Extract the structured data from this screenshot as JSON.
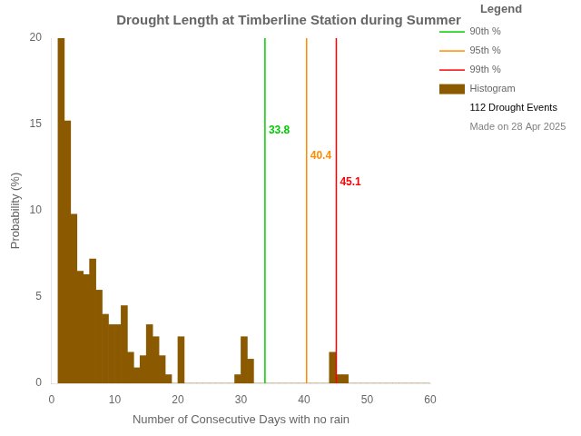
{
  "chart_data": {
    "type": "histogram",
    "title": "Drought Length at Timberline Station during Summer",
    "x_label": "Number of Consecutive Days with no rain",
    "y_label": "Probability (%)",
    "bins": [
      1,
      2,
      3,
      4,
      5,
      6,
      7,
      8,
      9,
      10,
      11,
      12,
      13,
      14,
      15,
      16,
      17,
      18,
      19,
      20,
      21,
      22,
      23,
      24,
      25,
      26,
      27,
      28,
      29,
      30,
      31,
      32,
      33,
      34,
      35,
      36,
      37,
      38,
      39,
      40,
      41,
      42,
      43,
      44,
      45,
      46,
      47,
      48,
      49,
      50,
      51,
      52,
      53,
      54,
      55,
      56,
      57,
      58,
      59,
      60
    ],
    "series": [
      {
        "name": "90th %",
        "type": "vline",
        "color": "#00CC00",
        "x": 33.8
      },
      {
        "name": "95th %",
        "type": "vline",
        "color": "#FF8C00",
        "x": 40.4
      },
      {
        "name": "99th %",
        "type": "vline",
        "color": "#FF0000",
        "x": 45.1
      },
      {
        "name": "Histogram",
        "type": "bar",
        "color": "#8B5A00",
        "values": [
          20.0,
          15.2,
          9.8,
          6.5,
          6.3,
          7.2,
          5.4,
          4.0,
          3.4,
          3.4,
          4.5,
          1.8,
          0.9,
          1.6,
          3.4,
          2.7,
          1.6,
          0.5,
          0.0,
          2.7,
          0.0,
          0.0,
          0.0,
          0.0,
          0.0,
          0.0,
          0.0,
          0.0,
          0.5,
          2.7,
          1.4,
          0.0,
          0.0,
          0.0,
          0.0,
          0.0,
          0.0,
          0.0,
          0.0,
          0.0,
          0.0,
          0.0,
          0.0,
          1.8,
          0.5,
          0.5,
          0.0,
          0.0,
          0.0,
          0.0,
          0.0,
          0.0,
          0.0,
          0.0,
          0.0,
          0.0,
          0.0,
          0.0,
          0.0
        ]
      }
    ],
    "annotations": [
      {
        "text": "33.8",
        "x": 33.8,
        "y": 14.5,
        "color": "#00CC00"
      },
      {
        "text": "40.4",
        "x": 40.4,
        "y": 13.0,
        "color": "#FF8C00"
      },
      {
        "text": "45.1",
        "x": 45.1,
        "y": 11.5,
        "color": "#FF0000"
      }
    ],
    "legend": "upper right",
    "legend_title": "Legend",
    "legend_notes": [
      "112 Drought Events",
      "Made on 28 Apr 2025"
    ],
    "xlim": [
      0,
      60
    ],
    "ylim": [
      0,
      20
    ],
    "xticks": [
      0,
      10,
      20,
      30,
      40,
      50,
      60
    ],
    "yticks": [
      0,
      5,
      10,
      15,
      20
    ],
    "grid": false
  }
}
